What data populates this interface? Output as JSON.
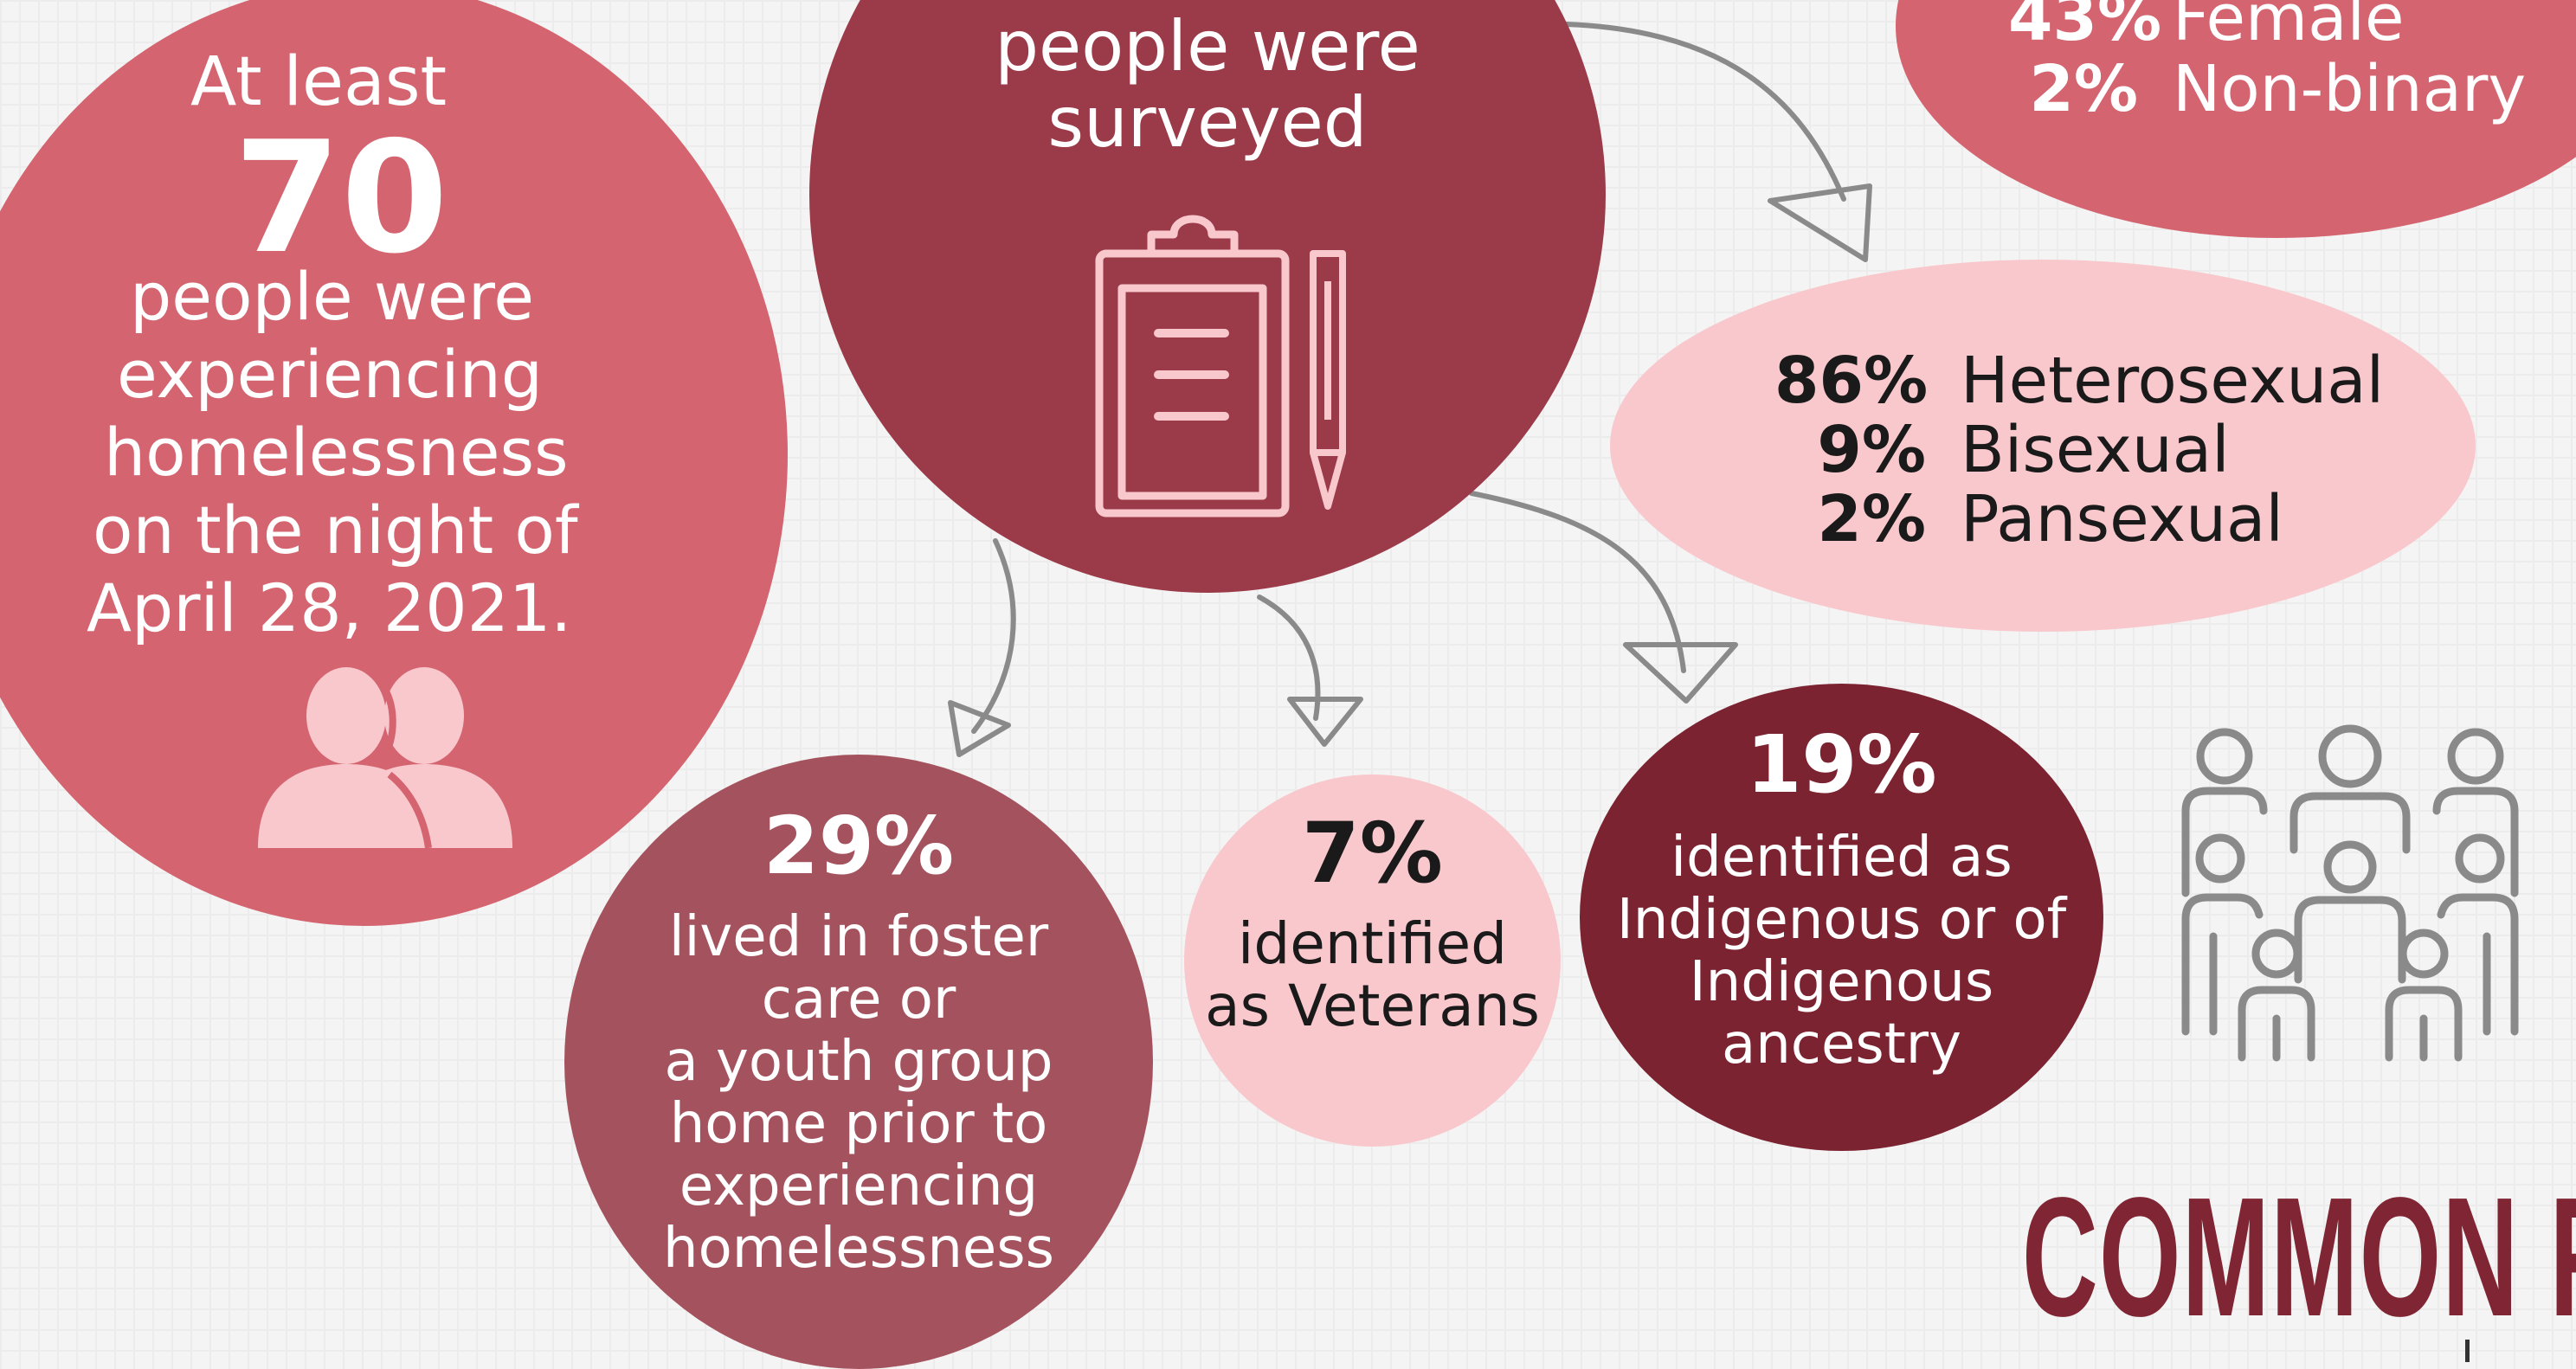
{
  "homeless_count": {
    "prefix": "At least",
    "number": "70",
    "text_lines": [
      "people were",
      "experiencing",
      "homelessness",
      "on the night of",
      "April 28, 2021."
    ]
  },
  "surveyed": {
    "text_lines": [
      "people were",
      "surveyed"
    ]
  },
  "gender": {
    "rows": [
      {
        "pct": "43%",
        "label": "Female"
      },
      {
        "pct": "2%",
        "label": "Non-binary"
      }
    ]
  },
  "orientation": {
    "rows": [
      {
        "pct": "86%",
        "label": "Heterosexual"
      },
      {
        "pct": "9%",
        "label": "Bisexual"
      },
      {
        "pct": "2%",
        "label": "Pansexual"
      }
    ]
  },
  "foster_care": {
    "pct": "29%",
    "text_lines": [
      "lived in foster",
      "care or",
      "a youth group",
      "home prior to",
      "experiencing",
      "homelessness"
    ]
  },
  "veterans": {
    "pct": "7%",
    "text_lines": [
      "identified",
      "as Veterans"
    ]
  },
  "indigenous": {
    "pct": "19%",
    "text_lines": [
      "identified as",
      "Indigenous or of",
      "Indigenous",
      "ancestry"
    ]
  },
  "section_heading": "COMMON F",
  "icons": [
    "people-icon",
    "clipboard-icon",
    "pencil-icon",
    "group-icon"
  ],
  "colors": {
    "rose": "#d4646f",
    "maroon": "#9b3a49",
    "dark_maroon": "#7b2331",
    "mauve": "#a4535e",
    "light_pink": "#f9c8cc",
    "heading": "#7f2533"
  }
}
